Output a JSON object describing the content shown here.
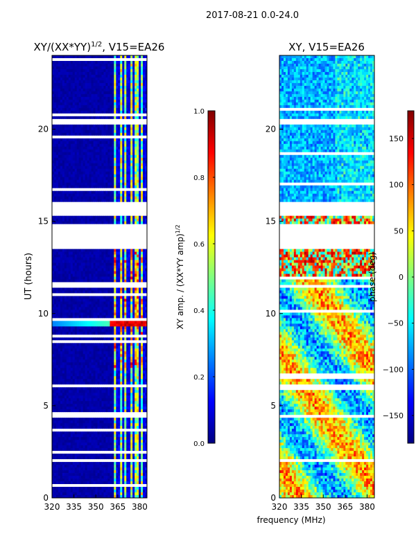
{
  "suptitle": "2017-08-21 0.0-24.0",
  "colors": {
    "jet": [
      "#000080",
      "#0000ff",
      "#0080ff",
      "#00ffff",
      "#80ff80",
      "#ffff00",
      "#ff8000",
      "#ff0000",
      "#800000"
    ],
    "gap": "#ffffff"
  },
  "chart_data": [
    {
      "type": "heatmap",
      "title": "XY/(XX*YY)^{1/2}, V15=EA26",
      "title_main": "XY/(XX*YY)",
      "title_exp": "1/2",
      "title_tail": ", V15=EA26",
      "xlabel": "",
      "ylabel": "UT (hours)",
      "xlim": [
        320,
        385
      ],
      "ylim": [
        0,
        24
      ],
      "xticks": [
        320,
        335,
        350,
        365,
        380
      ],
      "yticks": [
        0,
        5,
        10,
        15,
        20
      ],
      "colorbar": {
        "label": "XY amp. / (XX*YY amp)^{1/2}",
        "label_main": "XY amp. / (XX*YY amp)",
        "label_exp": "1/2",
        "range": [
          0.0,
          1.0
        ],
        "ticks": [
          "0.0",
          "0.2",
          "0.4",
          "0.6",
          "0.8",
          "1.0"
        ],
        "tick_values": [
          0.0,
          0.2,
          0.4,
          0.6,
          0.8,
          1.0
        ]
      },
      "description": "Mostly near 0 (dark blue) below ~362 MHz; elevated 0.3-0.9 in narrow channels near 363-382 MHz; strong broadband feature ~9.3-9.8 UT."
    },
    {
      "type": "heatmap",
      "title": "XY, V15=EA26",
      "xlabel": "frequency (MHz)",
      "ylabel": "",
      "xlim": [
        320,
        385
      ],
      "ylim": [
        0,
        24
      ],
      "xticks": [
        320,
        335,
        350,
        365,
        380
      ],
      "yticks": [
        0,
        5,
        10,
        15,
        20
      ],
      "colorbar": {
        "label": "phase (deg)",
        "range": [
          -180,
          180
        ],
        "ticks": [
          "−150",
          "−100",
          "−50",
          "0",
          "50",
          "100",
          "150"
        ],
        "tick_values": [
          -150,
          -100,
          -50,
          0,
          50,
          100,
          150
        ]
      },
      "description": "XY phase varies widely from -180 to 180 deg; blue/cyan dominated in late hours, mixed red/yellow/cyan in early hours."
    }
  ],
  "gaps_ut": [
    [
      14.8,
      13.5
    ],
    [
      16.1,
      15.3
    ],
    [
      20.6,
      20.3
    ],
    [
      11.6,
      11.4
    ],
    [
      6.2,
      6.0
    ],
    [
      4.5,
      4.4
    ],
    [
      2.1,
      2.0
    ],
    [
      0.2,
      0.1
    ]
  ]
}
